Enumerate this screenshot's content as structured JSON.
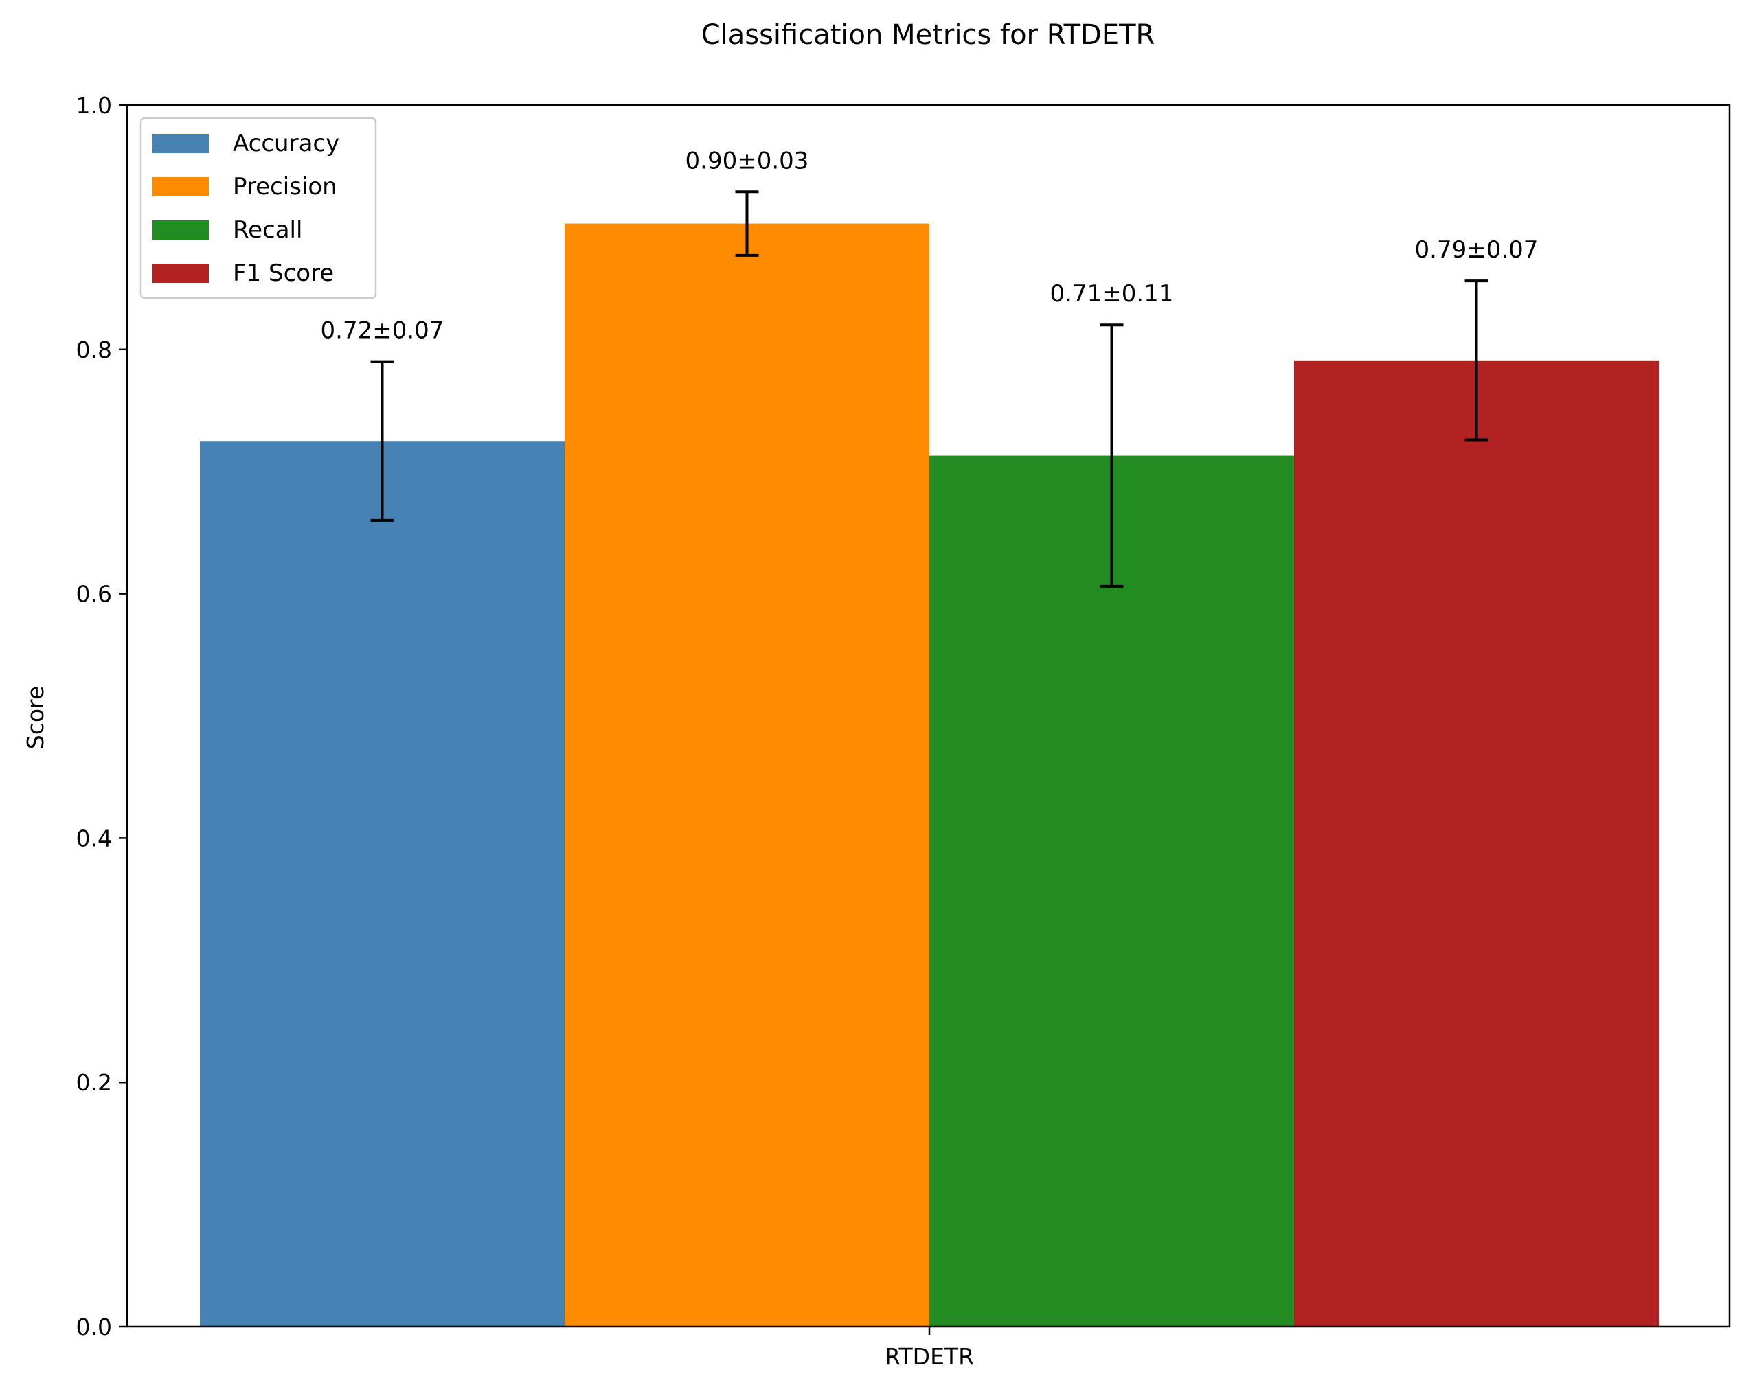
{
  "chart_data": {
    "type": "bar",
    "title": "Classification Metrics for RTDETR",
    "xlabel": "",
    "ylabel": "Score",
    "categories": [
      "RTDETR"
    ],
    "ylim": [
      0,
      1.0
    ],
    "yticks": [
      0.0,
      0.2,
      0.4,
      0.6,
      0.8,
      1.0
    ],
    "ytick_labels": [
      "0.0",
      "0.2",
      "0.4",
      "0.6",
      "0.8",
      "1.0"
    ],
    "grid": false,
    "legend_position": "upper-left",
    "series": [
      {
        "name": "Accuracy",
        "values": [
          0.725
        ],
        "errors": [
          0.065
        ],
        "color": "#4682b4",
        "label": "0.72±0.07"
      },
      {
        "name": "Precision",
        "values": [
          0.903
        ],
        "errors": [
          0.026
        ],
        "color": "#ff8c00",
        "label": "0.90±0.03"
      },
      {
        "name": "Recall",
        "values": [
          0.713
        ],
        "errors": [
          0.107
        ],
        "color": "#228b22",
        "label": "0.71±0.11"
      },
      {
        "name": "F1 Score",
        "values": [
          0.791
        ],
        "errors": [
          0.065
        ],
        "color": "#b22222",
        "label": "0.79±0.07"
      }
    ]
  }
}
